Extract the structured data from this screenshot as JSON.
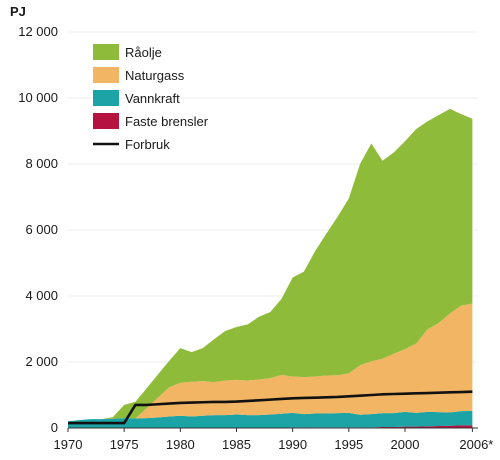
{
  "chart_data": {
    "type": "area",
    "ylabel": "PJ",
    "x": [
      1970,
      1971,
      1972,
      1973,
      1974,
      1975,
      1976,
      1977,
      1978,
      1979,
      1980,
      1981,
      1982,
      1983,
      1984,
      1985,
      1986,
      1987,
      1988,
      1989,
      1990,
      1991,
      1992,
      1993,
      1994,
      1995,
      1996,
      1997,
      1998,
      1999,
      2000,
      2001,
      2002,
      2003,
      2004,
      2005,
      2006
    ],
    "xticks": [
      1970,
      1975,
      1980,
      1985,
      1990,
      1995,
      2000,
      2006
    ],
    "xtick_labels": [
      "1970",
      "1975",
      "1980",
      "1985",
      "1990",
      "1995",
      "2000",
      "2006*"
    ],
    "yticks": [
      0,
      2000,
      4000,
      6000,
      8000,
      10000,
      12000
    ],
    "ytick_labels": [
      "0",
      "2 000",
      "4 000",
      "6 000",
      "8 000",
      "10 000",
      "12 000"
    ],
    "xlim": [
      1970,
      2006.5
    ],
    "ylim": [
      0,
      12000
    ],
    "grid": false,
    "legend_position": "top-left",
    "series": [
      {
        "name": "Faste brensler",
        "color": "#b5123f",
        "values": [
          0,
          0,
          0,
          0,
          0,
          0,
          0,
          0,
          0,
          0,
          10,
          10,
          10,
          10,
          10,
          10,
          10,
          10,
          10,
          10,
          20,
          20,
          20,
          20,
          20,
          20,
          20,
          20,
          30,
          30,
          40,
          40,
          50,
          60,
          70,
          80,
          80
        ]
      },
      {
        "name": "Vannkraft",
        "color": "#1ba3a6",
        "values": [
          200,
          240,
          270,
          270,
          280,
          300,
          290,
          300,
          320,
          350,
          360,
          340,
          360,
          380,
          380,
          400,
          380,
          380,
          400,
          420,
          440,
          400,
          420,
          420,
          430,
          440,
          380,
          400,
          420,
          420,
          450,
          420,
          440,
          420,
          400,
          430,
          440
        ]
      },
      {
        "name": "Naturgass",
        "color": "#f2b563",
        "values": [
          0,
          0,
          0,
          0,
          0,
          0,
          0,
          300,
          600,
          880,
          1000,
          1050,
          1050,
          1000,
          1050,
          1050,
          1050,
          1080,
          1100,
          1180,
          1100,
          1120,
          1120,
          1150,
          1150,
          1200,
          1500,
          1600,
          1650,
          1800,
          1900,
          2100,
          2500,
          2700,
          3000,
          3200,
          3250
        ]
      },
      {
        "name": "Råolje",
        "color": "#8fbb3a",
        "values": [
          0,
          0,
          0,
          0,
          50,
          400,
          500,
          600,
          700,
          800,
          1050,
          900,
          1000,
          1300,
          1500,
          1600,
          1700,
          1900,
          2000,
          2300,
          3000,
          3200,
          3800,
          4300,
          4800,
          5300,
          6100,
          6600,
          6000,
          6100,
          6300,
          6500,
          6300,
          6300,
          6200,
          5800,
          5600
        ]
      }
    ],
    "line_series": {
      "name": "Forbruk",
      "color": "#111111",
      "values": [
        150,
        150,
        150,
        150,
        150,
        150,
        700,
        700,
        720,
        740,
        760,
        770,
        780,
        790,
        790,
        800,
        820,
        840,
        860,
        880,
        900,
        910,
        920,
        930,
        940,
        960,
        980,
        1000,
        1020,
        1030,
        1040,
        1050,
        1060,
        1070,
        1080,
        1090,
        1100
      ]
    },
    "legend_order": [
      "Råolje",
      "Naturgass",
      "Vannkraft",
      "Faste brensler",
      "Forbruk"
    ]
  }
}
